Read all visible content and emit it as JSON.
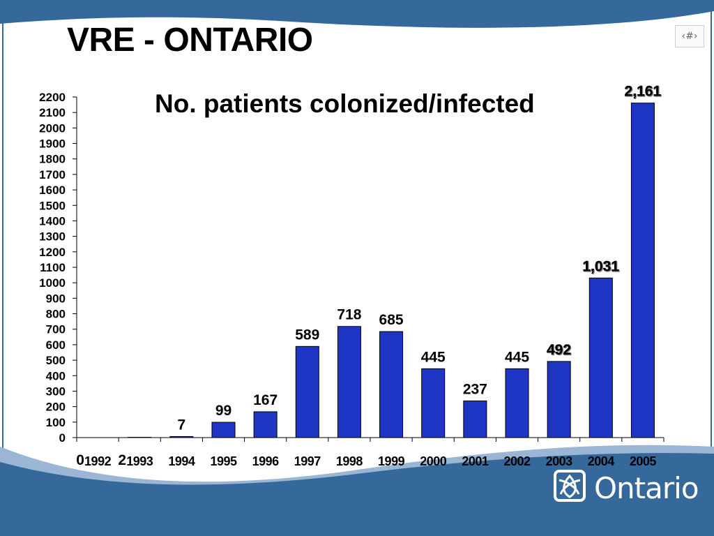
{
  "title": "VRE - ONTARIO",
  "slide_number": "‹#›",
  "logo": {
    "icon": "trillium-logo-icon",
    "text": "Ontario"
  },
  "colors": {
    "bar": "#1f35c4",
    "band": "#35689b",
    "band_light": "#9ab6d4"
  },
  "chart_data": {
    "type": "bar",
    "title": "No. patients colonized/infected",
    "categories": [
      "1992",
      "1993",
      "1994",
      "1995",
      "1996",
      "1997",
      "1998",
      "1999",
      "2000",
      "2001",
      "2002",
      "2003",
      "2004",
      "2005"
    ],
    "values": [
      0,
      2,
      7,
      99,
      167,
      589,
      718,
      685,
      445,
      237,
      445,
      492,
      1031,
      2161
    ],
    "data_labels": [
      "0",
      "2",
      "7",
      "99",
      "167",
      "589",
      "718",
      "685",
      "445",
      "237",
      "445",
      "492",
      "1,031",
      "2,161"
    ],
    "ylim": [
      0,
      2200
    ],
    "yticks": [
      "0",
      "100",
      "200",
      "300",
      "400",
      "500",
      "600",
      "700",
      "800",
      "900",
      "1000",
      "1100",
      "1200",
      "1300",
      "1400",
      "1500",
      "1600",
      "1700",
      "1800",
      "1900",
      "2000",
      "2100",
      "2200"
    ],
    "grid": false,
    "legend": "none"
  }
}
